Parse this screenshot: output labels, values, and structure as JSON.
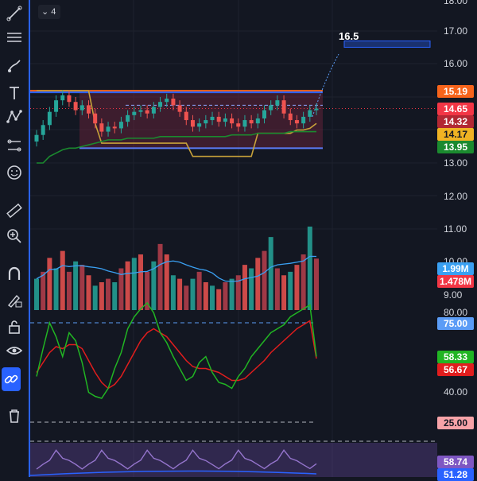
{
  "legend": {
    "collapse_count": "4"
  },
  "annotation": {
    "target_label": "16.5"
  },
  "price_axis": {
    "labels": [
      "18.00",
      "17.00",
      "16.00",
      "13.00",
      "12.00",
      "11.00",
      "10.00",
      "9.00",
      "80.00",
      "40.00"
    ],
    "tags": [
      {
        "text": "15.19",
        "color": "#f7641b"
      },
      {
        "text": "14.65",
        "color": "#f23645"
      },
      {
        "text": "14.32",
        "color": "#b22833"
      },
      {
        "text": "14.17",
        "color": "#f0b323",
        "dark": true
      },
      {
        "text": "13.95",
        "color": "#1b8a2f"
      },
      {
        "text": "1.99M",
        "color": "#3aa0f2"
      },
      {
        "text": "1.478M",
        "color": "#f23645"
      },
      {
        "text": "75.00",
        "color": "#5b9cf6"
      },
      {
        "text": "58.33",
        "color": "#21b523"
      },
      {
        "text": "56.67",
        "color": "#e11d1d"
      },
      {
        "text": "25.00",
        "color": "#f7a3a8",
        "dark": true
      },
      {
        "text": "58.74",
        "color": "#7e57c2"
      },
      {
        "text": "51.28",
        "color": "#2962ff"
      }
    ]
  },
  "toolbar": {
    "tools": [
      "trendline-tool-icon",
      "horizontal-lines-icon",
      "brush-icon",
      "text-icon",
      "pattern-icon",
      "forecast-icon",
      "emoji-icon",
      "ruler-icon",
      "zoom-in-icon",
      "magnet-icon",
      "lock-drawings-icon",
      "lock-icon",
      "eye-icon",
      "link-icon",
      "trash-icon"
    ]
  },
  "chart_data": {
    "type": "candlestick",
    "price_range": [
      8.5,
      18.3
    ],
    "candles_close": [
      13.85,
      14.15,
      14.55,
      14.9,
      15.05,
      14.85,
      14.6,
      14.75,
      14.5,
      14.2,
      13.95,
      14.1,
      14.05,
      14.25,
      14.45,
      14.55,
      14.6,
      14.5,
      14.7,
      14.85,
      14.95,
      14.75,
      14.55,
      14.3,
      14.1,
      14.2,
      14.3,
      14.4,
      14.25,
      14.35,
      14.2,
      14.1,
      14.3,
      14.2,
      14.35,
      14.6,
      14.75,
      14.9,
      14.5,
      14.3,
      14.2,
      14.4,
      14.6,
      14.65
    ],
    "range_box": {
      "top": 15.19,
      "bottom": 13.45
    },
    "target": 16.5,
    "volume": [
      0.9,
      1.1,
      1.5,
      1.2,
      1.7,
      1.1,
      1.4,
      1.3,
      1.0,
      0.7,
      0.8,
      0.9,
      0.8,
      1.2,
      1.4,
      1.5,
      1.6,
      1.1,
      1.4,
      1.9,
      1.6,
      1.0,
      0.9,
      0.7,
      0.9,
      1.1,
      0.8,
      0.7,
      0.6,
      0.8,
      0.9,
      1.0,
      1.3,
      1.2,
      1.5,
      1.7,
      2.1,
      1.2,
      1.0,
      1.1,
      1.3,
      1.6,
      2.4,
      1.48
    ],
    "oscillator_green": [
      48,
      62,
      75,
      68,
      58,
      70,
      66,
      55,
      40,
      38,
      37,
      42,
      52,
      60,
      72,
      78,
      82,
      85,
      80,
      70,
      65,
      58,
      52,
      46,
      48,
      55,
      58,
      50,
      45,
      44,
      42,
      48,
      52,
      58,
      62,
      66,
      70,
      72,
      74,
      78,
      80,
      82,
      84,
      58
    ],
    "oscillator_red": [
      50,
      55,
      60,
      63,
      62,
      64,
      64,
      62,
      56,
      50,
      45,
      42,
      44,
      48,
      54,
      60,
      66,
      70,
      72,
      70,
      68,
      64,
      60,
      56,
      53,
      52,
      52,
      51,
      50,
      48,
      46,
      46,
      47,
      50,
      53,
      56,
      60,
      63,
      66,
      69,
      72,
      74,
      76,
      57
    ]
  }
}
